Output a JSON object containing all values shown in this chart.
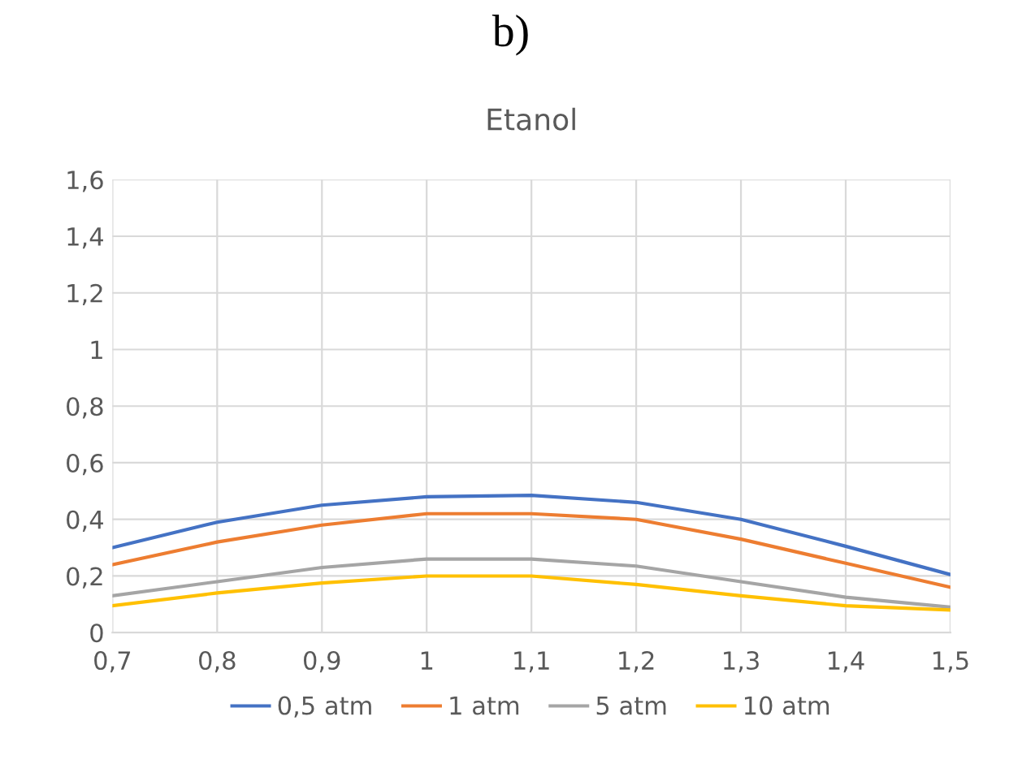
{
  "chart_data": {
    "type": "line",
    "title": "b)",
    "subtitle": "Etanol",
    "x": [
      0.7,
      0.8,
      0.9,
      1.0,
      1.1,
      1.2,
      1.3,
      1.4,
      1.5
    ],
    "series": [
      {
        "name": "0,5 atm",
        "color": "#4472c4",
        "values": [
          0.3,
          0.39,
          0.45,
          0.48,
          0.485,
          0.46,
          0.4,
          0.305,
          0.205
        ]
      },
      {
        "name": "1 atm",
        "color": "#ed7d31",
        "values": [
          0.24,
          0.32,
          0.38,
          0.42,
          0.42,
          0.4,
          0.33,
          0.245,
          0.16
        ]
      },
      {
        "name": "5 atm",
        "color": "#a5a5a5",
        "values": [
          0.13,
          0.18,
          0.23,
          0.26,
          0.26,
          0.235,
          0.18,
          0.125,
          0.09
        ]
      },
      {
        "name": "10 atm",
        "color": "#ffc000",
        "values": [
          0.095,
          0.14,
          0.175,
          0.2,
          0.2,
          0.17,
          0.13,
          0.095,
          0.08
        ]
      }
    ],
    "xlim": [
      0.7,
      1.5
    ],
    "xticks": [
      {
        "value": 0.7,
        "label": "0,7"
      },
      {
        "value": 0.8,
        "label": "0,8"
      },
      {
        "value": 0.9,
        "label": "0,9"
      },
      1,
      {
        "value": 1.1,
        "label": "1,1"
      },
      {
        "value": 1.2,
        "label": "1,2"
      },
      {
        "value": 1.3,
        "label": "1,3"
      },
      {
        "value": 1.4,
        "label": "1,4"
      },
      {
        "value": 1.5,
        "label": "1,5"
      }
    ],
    "ylim": [
      0,
      1.6
    ],
    "yticks": [
      0,
      {
        "value": 0.2,
        "label": "0,2"
      },
      {
        "value": 0.4,
        "label": "0,4"
      },
      {
        "value": 0.6,
        "label": "0,6"
      },
      {
        "value": 0.8,
        "label": "0,8"
      },
      1,
      {
        "value": 1.2,
        "label": "1,2"
      },
      {
        "value": 1.4,
        "label": "1,4"
      },
      {
        "value": 1.6,
        "label": "1,6"
      }
    ],
    "grid": true,
    "legend": "bottom",
    "marker": "none",
    "line_style": "solid"
  }
}
